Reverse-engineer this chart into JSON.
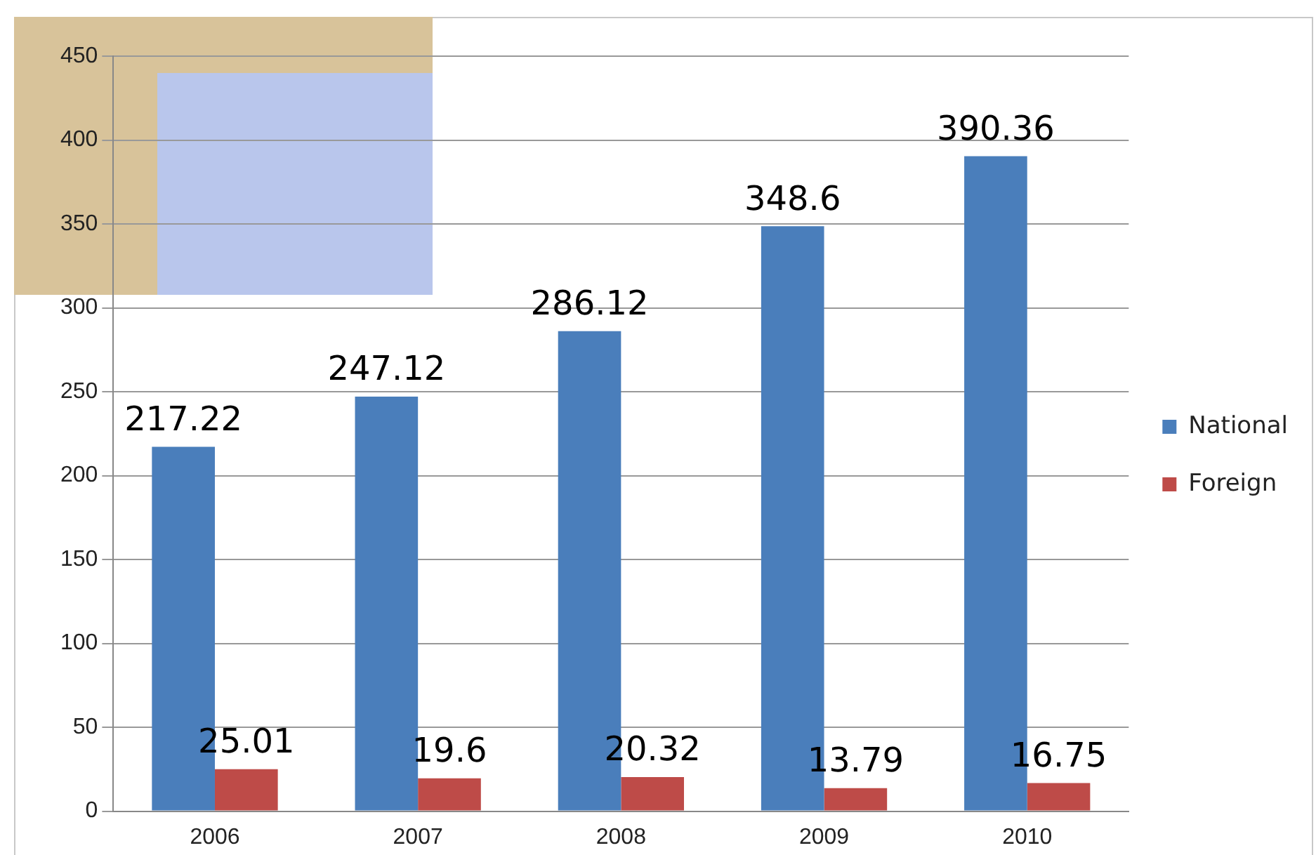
{
  "chart_data": {
    "type": "bar",
    "categories": [
      "2006",
      "2007",
      "2008",
      "2009",
      "2010"
    ],
    "series": [
      {
        "name": "National",
        "color": "#4a7ebb",
        "values": [
          217.22,
          247.12,
          286.12,
          348.6,
          390.36
        ]
      },
      {
        "name": "Foreign",
        "color": "#be4b48",
        "values": [
          25.01,
          19.6,
          20.32,
          13.79,
          16.75
        ]
      }
    ],
    "ylim": [
      0,
      450
    ],
    "yticks": [
      0,
      50,
      100,
      150,
      200,
      250,
      300,
      350,
      400,
      450
    ],
    "grid": "y",
    "legend": "right",
    "data_labels": true
  }
}
